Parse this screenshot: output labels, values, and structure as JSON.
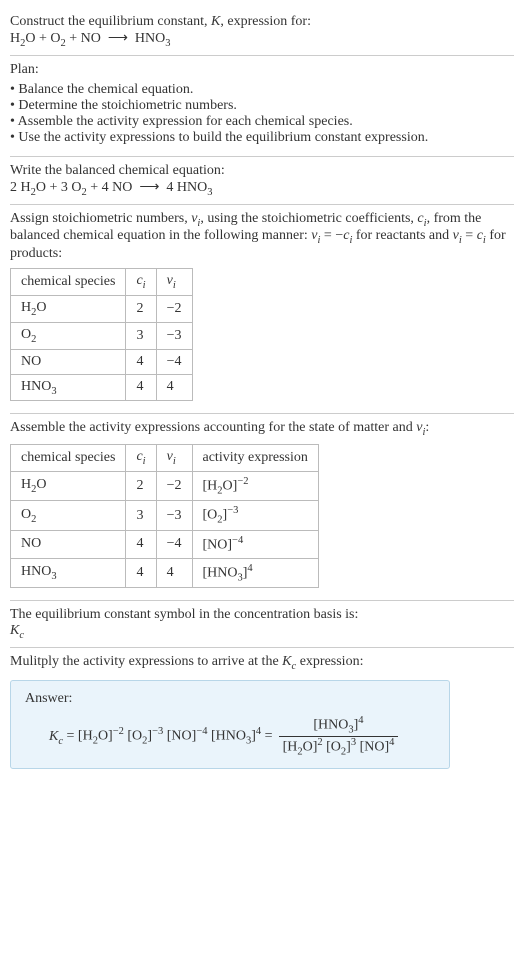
{
  "header": {
    "prompt_line1": "Construct the equilibrium constant, ",
    "prompt_K": "K",
    "prompt_line1_end": ", expression for:",
    "equation_html": "H<sub>2</sub>O + O<sub>2</sub> + NO&nbsp; ⟶ &nbsp;HNO<sub>3</sub>"
  },
  "plan": {
    "title": "Plan:",
    "items": [
      "Balance the chemical equation.",
      "Determine the stoichiometric numbers.",
      "Assemble the activity expression for each chemical species.",
      "Use the activity expressions to build the equilibrium constant expression."
    ]
  },
  "balanced": {
    "title": "Write the balanced chemical equation:",
    "equation_html": "2 H<sub>2</sub>O + 3 O<sub>2</sub> + 4 NO&nbsp; ⟶ &nbsp;4 HNO<sub>3</sub>"
  },
  "stoich": {
    "intro_html": "Assign stoichiometric numbers, <span class='italic'>ν<sub>i</sub></span>, using the stoichiometric coefficients, <span class='italic'>c<sub>i</sub></span>, from the balanced chemical equation in the following manner: <span class='italic'>ν<sub>i</sub></span> = −<span class='italic'>c<sub>i</sub></span> for reactants and <span class='italic'>ν<sub>i</sub></span> = <span class='italic'>c<sub>i</sub></span> for products:",
    "headers": [
      "chemical species",
      "c_i",
      "ν_i"
    ],
    "rows": [
      {
        "species_html": "H<sub>2</sub>O",
        "c": "2",
        "v": "−2"
      },
      {
        "species_html": "O<sub>2</sub>",
        "c": "3",
        "v": "−3"
      },
      {
        "species_html": "NO",
        "c": "4",
        "v": "−4"
      },
      {
        "species_html": "HNO<sub>3</sub>",
        "c": "4",
        "v": "4"
      }
    ]
  },
  "activity": {
    "intro_html": "Assemble the activity expressions accounting for the state of matter and <span class='italic'>ν<sub>i</sub></span>:",
    "headers": [
      "chemical species",
      "c_i",
      "ν_i",
      "activity expression"
    ],
    "rows": [
      {
        "species_html": "H<sub>2</sub>O",
        "c": "2",
        "v": "−2",
        "act_html": "[H<sub>2</sub>O]<sup>−2</sup>"
      },
      {
        "species_html": "O<sub>2</sub>",
        "c": "3",
        "v": "−3",
        "act_html": "[O<sub>2</sub>]<sup>−3</sup>"
      },
      {
        "species_html": "NO",
        "c": "4",
        "v": "−4",
        "act_html": "[NO]<sup>−4</sup>"
      },
      {
        "species_html": "HNO<sub>3</sub>",
        "c": "4",
        "v": "4",
        "act_html": "[HNO<sub>3</sub>]<sup>4</sup>"
      }
    ]
  },
  "symbol": {
    "line1": "The equilibrium constant symbol in the concentration basis is:",
    "kc_html": "<span class='italic'>K<sub>c</sub></span>"
  },
  "multiply": {
    "line_html": "Mulitply the activity expressions to arrive at the <span class='italic'>K<sub>c</sub></span> expression:"
  },
  "answer": {
    "label": "Answer:",
    "lhs_html": "<span class='italic'>K<sub>c</sub></span> = [H<sub>2</sub>O]<sup>−2</sup> [O<sub>2</sub>]<sup>−3</sup> [NO]<sup>−4</sup> [HNO<sub>3</sub>]<sup>4</sup> =",
    "frac_num_html": "[HNO<sub>3</sub>]<sup>4</sup>",
    "frac_den_html": "[H<sub>2</sub>O]<sup>2</sup> [O<sub>2</sub>]<sup>3</sup> [NO]<sup>4</sup>"
  }
}
